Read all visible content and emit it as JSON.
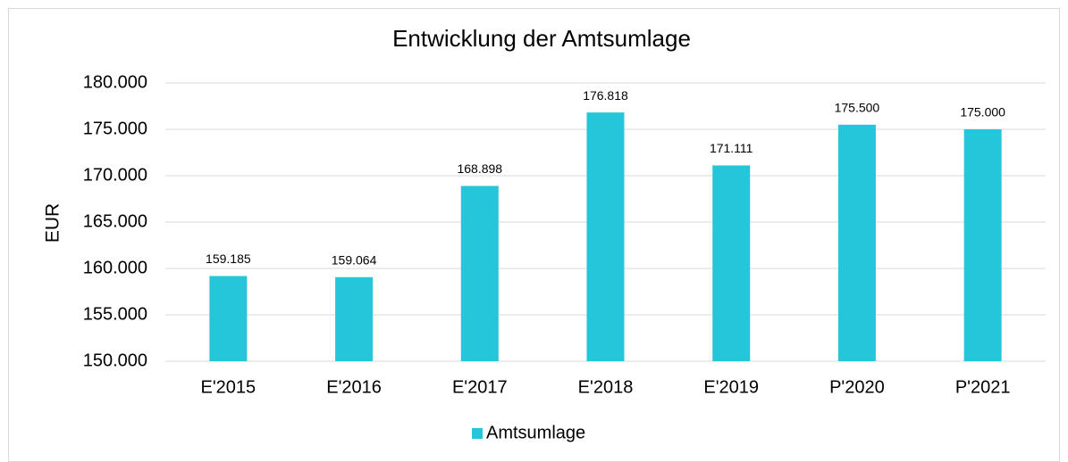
{
  "chart_data": {
    "type": "bar",
    "title": "Entwicklung der Amtsumlage",
    "y_label": "EUR",
    "categories": [
      "E'2015",
      "E'2016",
      "E'2017",
      "E'2018",
      "E'2019",
      "P'2020",
      "P'2021"
    ],
    "series": [
      {
        "name": "Amtsumlage",
        "color": "#26c6da",
        "values": [
          159185,
          159064,
          168898,
          176818,
          171111,
          175500,
          175000
        ],
        "value_labels": [
          "159.185",
          "159.064",
          "168.898",
          "176.818",
          "171.111",
          "175.500",
          "175.000"
        ]
      }
    ],
    "ylim": [
      150000,
      180000
    ],
    "yticks": [
      {
        "value": 150000,
        "label": "150.000"
      },
      {
        "value": 155000,
        "label": "155.000"
      },
      {
        "value": 160000,
        "label": "160.000"
      },
      {
        "value": 165000,
        "label": "165.000"
      },
      {
        "value": 170000,
        "label": "170.000"
      },
      {
        "value": 175000,
        "label": "175.000"
      },
      {
        "value": 180000,
        "label": "180.000"
      }
    ],
    "grid": true,
    "legend": "bottom"
  }
}
